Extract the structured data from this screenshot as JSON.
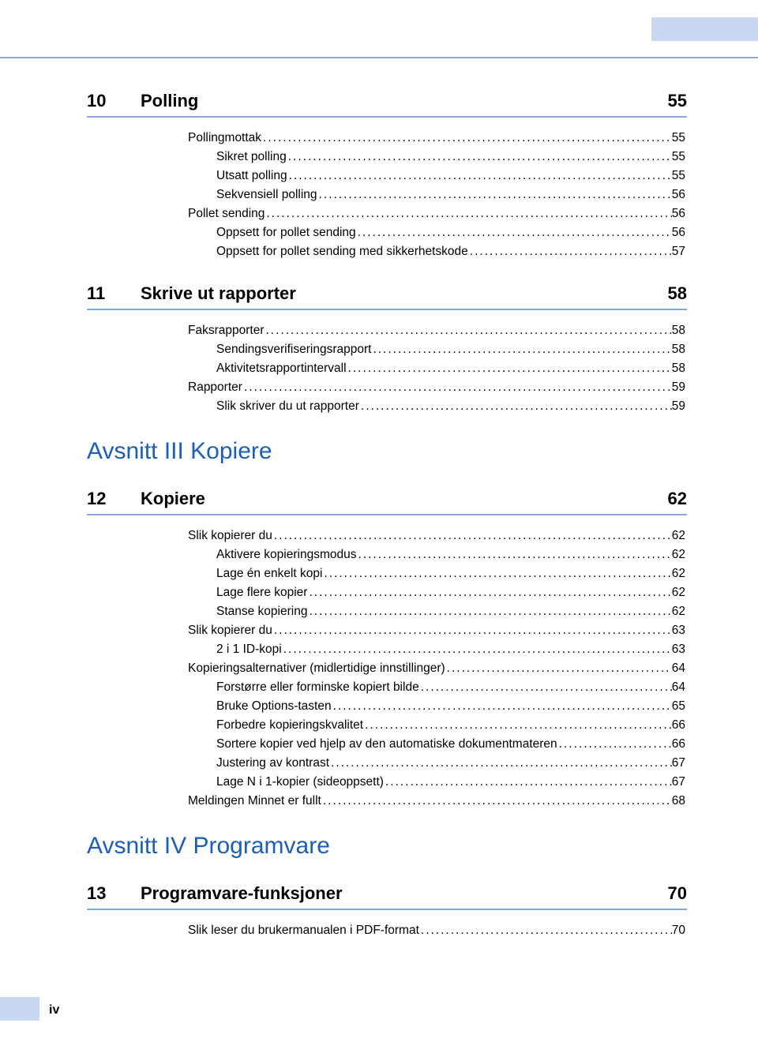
{
  "colors": {
    "accent_blue": "#86aadc",
    "header_box": "#c9d8f2",
    "section_text": "#1a5fbf",
    "text": "#000000",
    "background": "#ffffff"
  },
  "page_number": "iv",
  "chapters": [
    {
      "num": "10",
      "title": "Polling",
      "page": "55",
      "entries": [
        {
          "label": "Pollingmottak",
          "page": "55",
          "indent": 0
        },
        {
          "label": "Sikret polling",
          "page": "55",
          "indent": 1
        },
        {
          "label": "Utsatt polling",
          "page": "55",
          "indent": 1
        },
        {
          "label": "Sekvensiell polling",
          "page": "56",
          "indent": 1
        },
        {
          "label": "Pollet sending",
          "page": "56",
          "indent": 0
        },
        {
          "label": "Oppsett for pollet sending",
          "page": "56",
          "indent": 1
        },
        {
          "label": "Oppsett for pollet sending med sikkerhetskode",
          "page": "57",
          "indent": 1
        }
      ]
    },
    {
      "num": "11",
      "title": "Skrive ut rapporter",
      "page": "58",
      "entries": [
        {
          "label": "Faksrapporter",
          "page": "58",
          "indent": 0
        },
        {
          "label": "Sendingsverifiseringsrapport",
          "page": "58",
          "indent": 1
        },
        {
          "label": "Aktivitetsrapportintervall",
          "page": "58",
          "indent": 1
        },
        {
          "label": "Rapporter",
          "page": "59",
          "indent": 0
        },
        {
          "label": "Slik skriver du ut rapporter",
          "page": "59",
          "indent": 1
        }
      ]
    }
  ],
  "section3": {
    "heading": "Avsnitt III  Kopiere",
    "chapter": {
      "num": "12",
      "title": "Kopiere",
      "page": "62",
      "entries": [
        {
          "label": "Slik kopierer du",
          "page": "62",
          "indent": 0
        },
        {
          "label": "Aktivere kopieringsmodus",
          "page": "62",
          "indent": 1
        },
        {
          "label": "Lage én enkelt kopi",
          "page": "62",
          "indent": 1
        },
        {
          "label": "Lage flere kopier",
          "page": "62",
          "indent": 1
        },
        {
          "label": "Stanse kopiering",
          "page": "62",
          "indent": 1
        },
        {
          "label": "Slik kopierer du",
          "page": "63",
          "indent": 0
        },
        {
          "label": "2 i 1 ID-kopi",
          "page": "63",
          "indent": 1
        },
        {
          "label": "Kopieringsalternativer (midlertidige innstillinger)",
          "page": "64",
          "indent": 0
        },
        {
          "label": "Forstørre eller forminske kopiert bilde",
          "page": "64",
          "indent": 1
        },
        {
          "label": "Bruke Options-tasten",
          "page": "65",
          "indent": 1
        },
        {
          "label": "Forbedre kopieringskvalitet",
          "page": "66",
          "indent": 1
        },
        {
          "label": "Sortere kopier ved hjelp av den automatiske dokumentmateren",
          "page": "66",
          "indent": 1
        },
        {
          "label": "Justering av kontrast",
          "page": "67",
          "indent": 1
        },
        {
          "label": "Lage N i 1-kopier (sideoppsett)",
          "page": "67",
          "indent": 1
        },
        {
          "label": "Meldingen Minnet er fullt",
          "page": "68",
          "indent": 0
        }
      ]
    }
  },
  "section4": {
    "heading": "Avsnitt IV  Programvare",
    "chapter": {
      "num": "13",
      "title": "Programvare-funksjoner",
      "page": "70",
      "entries": [
        {
          "label": "Slik leser du brukermanualen i PDF-format",
          "page": "70",
          "indent": 0
        }
      ]
    }
  }
}
